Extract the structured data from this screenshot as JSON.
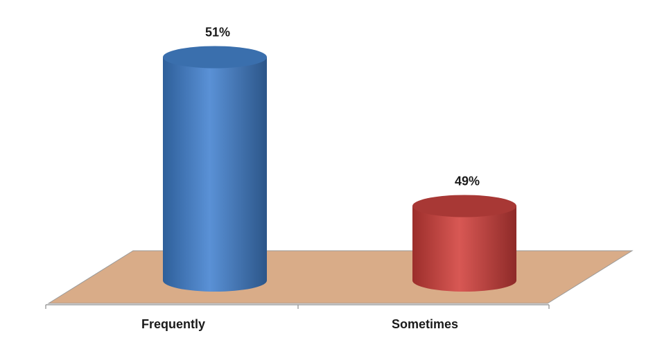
{
  "chart_data": {
    "type": "bar",
    "style": "3d-cylinder",
    "categories": [
      "Frequently",
      "Sometimes"
    ],
    "values": [
      51,
      49
    ],
    "data_labels": [
      "51%",
      "49%"
    ],
    "colors": [
      "#4f86c6",
      "#c0504d"
    ],
    "floor_color": "#d9ac88",
    "grid": false,
    "legend": "none"
  }
}
